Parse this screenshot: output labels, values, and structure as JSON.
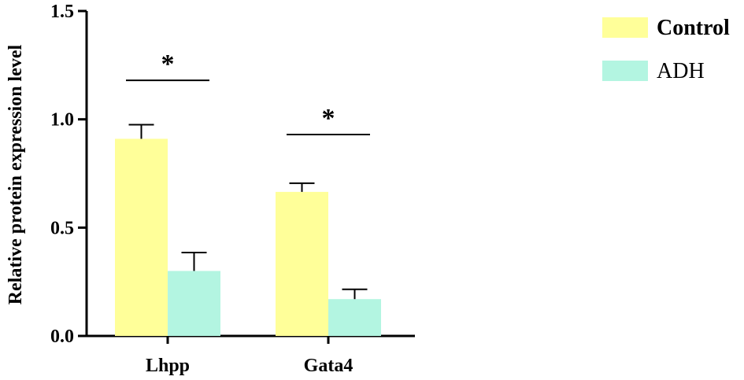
{
  "chart_data": {
    "type": "bar",
    "title": "",
    "xlabel": "",
    "ylabel": "Relative protein expression level",
    "ylim": [
      0,
      1.5
    ],
    "yticks": [
      0.0,
      0.5,
      1.0,
      1.5
    ],
    "ytick_labels": [
      "0.0",
      "0.5",
      "1.0",
      "1.5"
    ],
    "categories": [
      "Lhpp",
      "Gata4"
    ],
    "series": [
      {
        "name": "Control",
        "values": [
          0.91,
          0.665
        ],
        "errors": [
          0.065,
          0.04
        ],
        "color": "#FFFF99"
      },
      {
        "name": "ADH",
        "values": [
          0.3,
          0.17
        ],
        "errors": [
          0.085,
          0.045
        ],
        "color": "#B3F5E1"
      }
    ],
    "significance": [
      {
        "category": "Lhpp",
        "label": "*",
        "y": 1.18
      },
      {
        "category": "Gata4",
        "label": "*",
        "y": 0.93
      }
    ],
    "legend": {
      "position": "top-right"
    },
    "grid": false
  }
}
